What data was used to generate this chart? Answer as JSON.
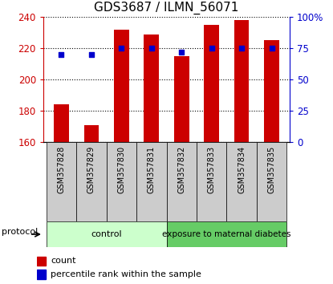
{
  "title": "GDS3687 / ILMN_56071",
  "samples": [
    "GSM357828",
    "GSM357829",
    "GSM357830",
    "GSM357831",
    "GSM357832",
    "GSM357833",
    "GSM357834",
    "GSM357835"
  ],
  "counts": [
    184,
    171,
    232,
    229,
    215,
    235,
    238,
    225
  ],
  "percentile_ranks": [
    70,
    70,
    75,
    75,
    72,
    75,
    75,
    75
  ],
  "ylim_left": [
    160,
    240
  ],
  "ylim_right": [
    0,
    100
  ],
  "yticks_left": [
    160,
    180,
    200,
    220,
    240
  ],
  "yticks_right": [
    0,
    25,
    50,
    75,
    100
  ],
  "ytick_labels_right": [
    "0",
    "25",
    "50",
    "75",
    "100%"
  ],
  "bar_color": "#cc0000",
  "square_color": "#0000cc",
  "bar_width": 0.5,
  "protocol_groups": [
    {
      "label": "control",
      "n": 4,
      "color": "#ccffcc"
    },
    {
      "label": "exposure to maternal diabetes",
      "n": 4,
      "color": "#66cc66"
    }
  ],
  "protocol_label": "protocol",
  "legend_count_label": "count",
  "legend_percentile_label": "percentile rank within the sample",
  "left_axis_color": "#cc0000",
  "right_axis_color": "#0000cc",
  "tick_bg_color": "#cccccc"
}
